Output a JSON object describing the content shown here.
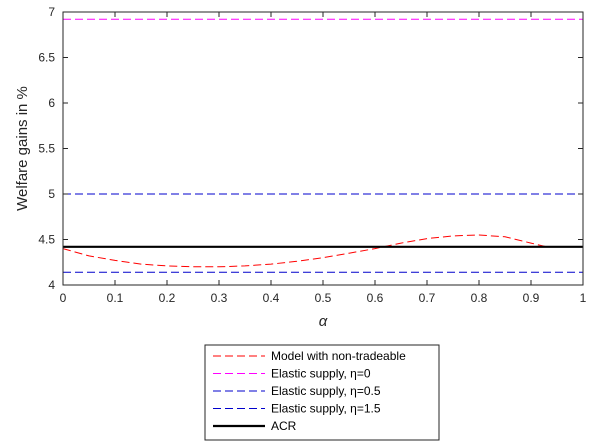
{
  "chart_data": {
    "type": "line",
    "xlabel": "α",
    "ylabel": "Welfare gains in %",
    "xlim": [
      0,
      1
    ],
    "ylim": [
      4,
      7
    ],
    "xticks": [
      0,
      0.1,
      0.2,
      0.3,
      0.4,
      0.5,
      0.6,
      0.7,
      0.8,
      0.9,
      1
    ],
    "xtick_labels": [
      "0",
      "0.1",
      "0.2",
      "0.3",
      "0.4",
      "0.5",
      "0.6",
      "0.7",
      "0.8",
      "0.9",
      "1"
    ],
    "yticks": [
      4,
      4.5,
      5,
      5.5,
      6,
      6.5,
      7
    ],
    "ytick_labels": [
      "4",
      "4.5",
      "5",
      "5.5",
      "6",
      "6.5",
      "7"
    ],
    "grid": false,
    "legend_position": "bottom-center",
    "series": [
      {
        "name": "Model with non-tradeable",
        "color": "#ff0000",
        "style": "dashed",
        "x": [
          0,
          0.05,
          0.1,
          0.15,
          0.2,
          0.25,
          0.3,
          0.35,
          0.4,
          0.45,
          0.5,
          0.55,
          0.6,
          0.65,
          0.7,
          0.75,
          0.8,
          0.85,
          0.9,
          0.93
        ],
        "y": [
          4.4,
          4.32,
          4.27,
          4.23,
          4.21,
          4.2,
          4.2,
          4.21,
          4.23,
          4.26,
          4.3,
          4.35,
          4.4,
          4.46,
          4.51,
          4.54,
          4.55,
          4.53,
          4.46,
          4.42
        ]
      },
      {
        "name": "Elastic supply, η=0",
        "color": "#ff00ff",
        "style": "dashed",
        "x": [
          0,
          1
        ],
        "y": [
          6.92,
          6.92
        ]
      },
      {
        "name": "Elastic supply, η=0.5",
        "color": "#0000cc",
        "style": "dashed",
        "x": [
          0,
          1
        ],
        "y": [
          5.0,
          5.0
        ]
      },
      {
        "name": "Elastic supply, η=1.5",
        "color": "#0000cc",
        "style": "dashed",
        "x": [
          0,
          1
        ],
        "y": [
          4.14,
          4.14
        ]
      },
      {
        "name": "ACR",
        "color": "#000000",
        "style": "solid",
        "x": [
          0,
          1
        ],
        "y": [
          4.42,
          4.42
        ]
      }
    ]
  }
}
